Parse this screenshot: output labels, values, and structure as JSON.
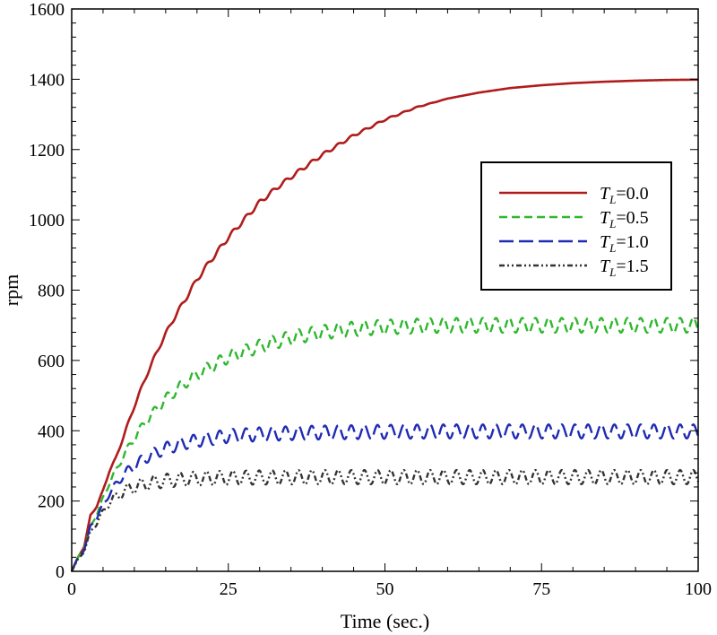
{
  "chart_data": {
    "type": "line",
    "xlabel": "Time (sec.)",
    "ylabel": "rpm",
    "xlim": [
      0,
      100
    ],
    "ylim": [
      0,
      1600
    ],
    "xticks": [
      0,
      25,
      50,
      75,
      100
    ],
    "yticks": [
      0,
      200,
      400,
      600,
      800,
      1000,
      1200,
      1400,
      1600
    ],
    "legend_position": "right",
    "grid": false,
    "series": [
      {
        "name": "T_L=0.0",
        "label_main": "T",
        "label_sub": "L",
        "label_rest": "=0.0",
        "color": "#b01c1c",
        "style": "solid",
        "x": [
          0,
          1,
          2,
          3,
          4,
          5,
          6,
          7,
          8,
          10,
          12,
          14,
          16,
          18,
          20,
          22,
          25,
          28,
          30,
          33,
          36,
          40,
          45,
          50,
          55,
          60,
          65,
          70,
          75,
          80,
          85,
          90,
          95,
          100
        ],
        "y": [
          0,
          40,
          70,
          160,
          185,
          230,
          285,
          320,
          370,
          470,
          560,
          640,
          710,
          770,
          830,
          880,
          950,
          1010,
          1050,
          1095,
          1135,
          1185,
          1240,
          1285,
          1320,
          1345,
          1362,
          1375,
          1383,
          1389,
          1393,
          1396,
          1398,
          1399
        ]
      },
      {
        "name": "T_L=0.5",
        "label_main": "T",
        "label_sub": "L",
        "label_rest": "=0.5",
        "color": "#2eb82e",
        "style": "dashed",
        "x": [
          0,
          1,
          2,
          3,
          4,
          5,
          6,
          8,
          10,
          12,
          15,
          18,
          20,
          25,
          30,
          35,
          40,
          45,
          50,
          55,
          60,
          70,
          80,
          90,
          100
        ],
        "y": [
          0,
          40,
          65,
          130,
          160,
          210,
          250,
          320,
          380,
          430,
          490,
          535,
          560,
          610,
          640,
          665,
          680,
          690,
          695,
          698,
          700,
          700,
          700,
          700,
          700
        ]
      },
      {
        "name": "T_L=1.0",
        "label_main": "T",
        "label_sub": "L",
        "label_rest": "=1.0",
        "color": "#1f2bb3",
        "style": "longdash",
        "x": [
          0,
          1,
          2,
          3,
          4,
          5,
          6,
          8,
          10,
          12,
          15,
          18,
          20,
          25,
          30,
          35,
          40,
          50,
          60,
          70,
          80,
          90,
          100
        ],
        "y": [
          0,
          40,
          60,
          130,
          150,
          190,
          220,
          270,
          300,
          325,
          350,
          365,
          372,
          385,
          390,
          393,
          395,
          397,
          398,
          398,
          398,
          398,
          398
        ]
      },
      {
        "name": "T_L=1.5",
        "label_main": "T",
        "label_sub": "L",
        "label_rest": "=1.5",
        "color": "#333333",
        "style": "dashdotdot",
        "x": [
          0,
          1,
          2,
          3,
          4,
          5,
          6,
          8,
          10,
          12,
          15,
          18,
          20,
          25,
          30,
          40,
          50,
          60,
          70,
          80,
          90,
          100
        ],
        "y": [
          0,
          35,
          55,
          115,
          135,
          170,
          195,
          225,
          240,
          250,
          258,
          262,
          264,
          266,
          267,
          268,
          268,
          268,
          268,
          268,
          268,
          268
        ]
      }
    ]
  }
}
